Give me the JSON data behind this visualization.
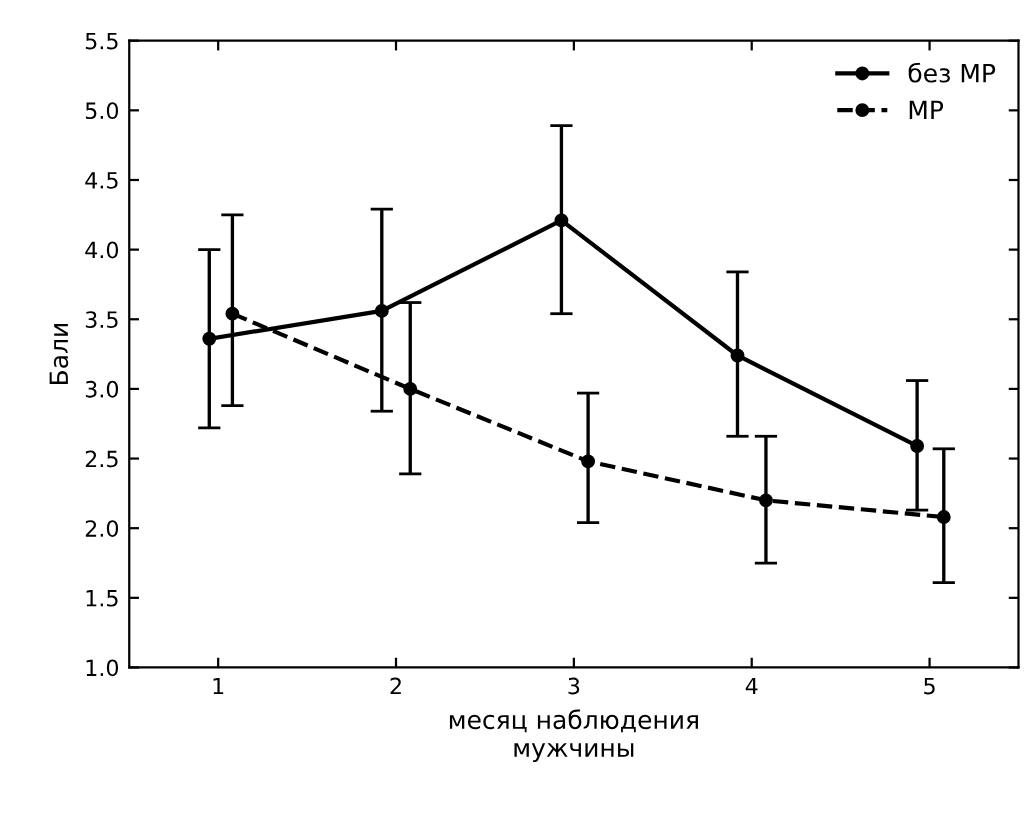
{
  "chart_data": {
    "type": "line",
    "xlabel": "месяц наблюдения\nмужчины",
    "ylabel": "Бали",
    "xlim": [
      0.5,
      5.5
    ],
    "xticks": [
      1,
      2,
      3,
      4,
      5
    ],
    "ylim": [
      1.0,
      5.5
    ],
    "yticks": [
      {
        "value": 1.0,
        "label": "1.0"
      },
      {
        "value": 1.5,
        "label": "1.5"
      },
      {
        "value": 2.0,
        "label": "2.0"
      },
      {
        "value": 2.5,
        "label": "2.5"
      },
      {
        "value": 3.0,
        "label": "3.0"
      },
      {
        "value": 3.5,
        "label": "3.5"
      },
      {
        "value": 4.0,
        "label": "4.0"
      },
      {
        "value": 4.5,
        "label": "4.5"
      },
      {
        "value": 5.0,
        "label": "5.0"
      },
      {
        "value": 5.5,
        "label": "5.5"
      }
    ],
    "grid": false,
    "legend": "top right",
    "marker": "circle",
    "series": [
      {
        "name": "без МР",
        "color": "#000000",
        "line_style": "solid",
        "x": [
          0.95,
          1.92,
          2.93,
          3.92,
          4.93
        ],
        "values": [
          3.36,
          3.56,
          4.21,
          3.24,
          2.59
        ],
        "errors": [
          [
            2.72,
            4.0
          ],
          [
            2.84,
            4.29
          ],
          [
            3.54,
            4.89
          ],
          [
            2.66,
            3.84
          ],
          [
            2.13,
            3.06
          ]
        ]
      },
      {
        "name": "МР",
        "color": "#000000",
        "line_style": "dashed",
        "x": [
          1.08,
          2.08,
          3.08,
          4.08,
          5.08
        ],
        "values": [
          3.54,
          3.0,
          2.48,
          2.2,
          2.08
        ],
        "errors": [
          [
            2.88,
            4.25
          ],
          [
            2.39,
            3.62
          ],
          [
            2.04,
            2.97
          ],
          [
            1.75,
            2.66
          ],
          [
            1.61,
            2.57
          ]
        ]
      }
    ]
  }
}
